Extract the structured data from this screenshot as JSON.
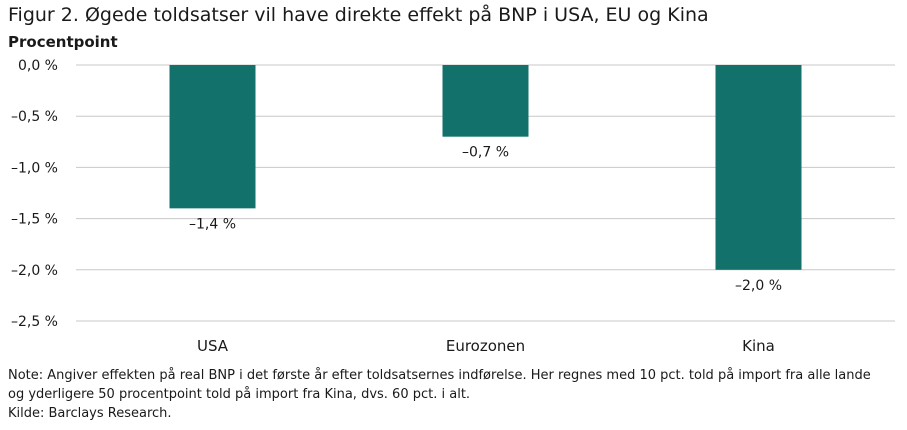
{
  "figure": {
    "title": "Figur 2. Øgede toldsatser vil have direkte effekt på BNP i USA, EU og Kina"
  },
  "chart_data": {
    "type": "bar",
    "ylabel": "Procentpoint",
    "xlabel": "",
    "categories": [
      "USA",
      "Eurozonen",
      "Kina"
    ],
    "values": [
      -1.4,
      -0.7,
      -2.0
    ],
    "value_labels": [
      "–1,4 %",
      "–0,7 %",
      "–2,0 %"
    ],
    "ylim": [
      -2.5,
      0
    ],
    "yticks": [
      0,
      -0.5,
      -1.0,
      -1.5,
      -2.0,
      -2.5
    ],
    "ytick_labels": [
      "0,0 %",
      "–0,5 %",
      "–1,0 %",
      "–1,5 %",
      "–2,0 %",
      "–2,5 %"
    ],
    "grid": true,
    "legend": "none",
    "bar_color": "#12716b",
    "grid_color": "#c8c8c8"
  },
  "notes": {
    "line1": "Note: Angiver effekten på real BNP i det første år efter toldsatsernes indførelse. Her regnes med 10 pct. told på import fra alle lande",
    "line2": "og yderligere 50 procentpoint told på import fra Kina, dvs. 60 pct. i alt.",
    "source": "Kilde: Barclays Research."
  }
}
